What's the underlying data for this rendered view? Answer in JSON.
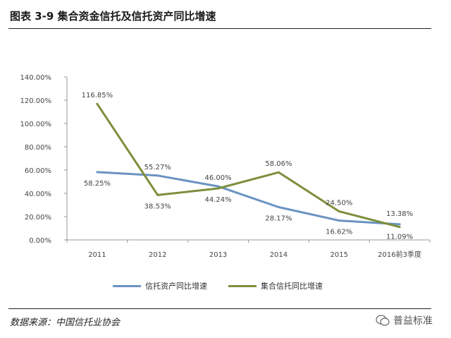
{
  "header": {
    "title": "图表 3-9 集合资金信托及信托资产同比增速"
  },
  "footer": {
    "source": "数据来源：中国信托业协会",
    "watermark": "普益标准"
  },
  "colors": {
    "series_a": "#6a93c2",
    "series_b": "#7d8f3c"
  },
  "chart_data": {
    "type": "line",
    "categories": [
      "2011",
      "2012",
      "2013",
      "2014",
      "2015",
      "2016前3季度"
    ],
    "yticks": [
      "0.00%",
      "20.00%",
      "40.00%",
      "60.00%",
      "80.00%",
      "100.00%",
      "120.00%",
      "140.00%"
    ],
    "ylim": [
      0,
      140
    ],
    "grid": false,
    "legend_position": "bottom",
    "series": [
      {
        "name": "信托资产同比增速",
        "values": [
          58.25,
          55.27,
          46.0,
          28.17,
          16.62,
          13.38
        ],
        "labels": [
          "58.25%",
          "55.27%",
          "46.00%",
          "28.17%",
          "16.62%",
          "13.38%"
        ]
      },
      {
        "name": "集合信托同比增速",
        "values": [
          116.85,
          38.53,
          44.24,
          58.06,
          24.5,
          11.09
        ],
        "labels": [
          "116.85%",
          "38.53%",
          "44.24%",
          "58.06%",
          "24.50%",
          "11.09%"
        ]
      }
    ]
  }
}
